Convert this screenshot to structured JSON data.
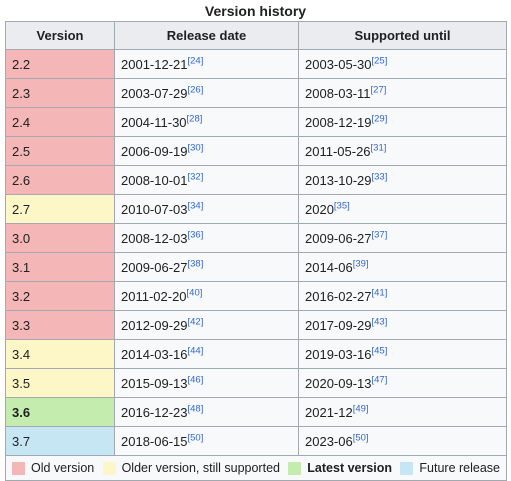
{
  "caption": "Version history",
  "headers": {
    "version": "Version",
    "release": "Release date",
    "supported": "Supported until"
  },
  "colors": {
    "old": "#f4b6b6",
    "older": "#fdf6c6",
    "latest": "#c4ecae",
    "future": "#c6e6f3"
  },
  "rows": [
    {
      "version": "2.2",
      "status": "old",
      "release": "2001-12-21",
      "release_ref": "[24]",
      "supported": "2003-05-30",
      "supported_ref": "[25]"
    },
    {
      "version": "2.3",
      "status": "old",
      "release": "2003-07-29",
      "release_ref": "[26]",
      "supported": "2008-03-11",
      "supported_ref": "[27]"
    },
    {
      "version": "2.4",
      "status": "old",
      "release": "2004-11-30",
      "release_ref": "[28]",
      "supported": "2008-12-19",
      "supported_ref": "[29]"
    },
    {
      "version": "2.5",
      "status": "old",
      "release": "2006-09-19",
      "release_ref": "[30]",
      "supported": "2011-05-26",
      "supported_ref": "[31]"
    },
    {
      "version": "2.6",
      "status": "old",
      "release": "2008-10-01",
      "release_ref": "[32]",
      "supported": "2013-10-29",
      "supported_ref": "[33]"
    },
    {
      "version": "2.7",
      "status": "older",
      "release": "2010-07-03",
      "release_ref": "[34]",
      "supported": "2020",
      "supported_ref": "[35]"
    },
    {
      "version": "3.0",
      "status": "old",
      "release": "2008-12-03",
      "release_ref": "[36]",
      "supported": "2009-06-27",
      "supported_ref": "[37]"
    },
    {
      "version": "3.1",
      "status": "old",
      "release": "2009-06-27",
      "release_ref": "[38]",
      "supported": "2014-06",
      "supported_ref": "[39]"
    },
    {
      "version": "3.2",
      "status": "old",
      "release": "2011-02-20",
      "release_ref": "[40]",
      "supported": "2016-02-27",
      "supported_ref": "[41]"
    },
    {
      "version": "3.3",
      "status": "old",
      "release": "2012-09-29",
      "release_ref": "[42]",
      "supported": "2017-09-29",
      "supported_ref": "[43]"
    },
    {
      "version": "3.4",
      "status": "older",
      "release": "2014-03-16",
      "release_ref": "[44]",
      "supported": "2019-03-16",
      "supported_ref": "[45]"
    },
    {
      "version": "3.5",
      "status": "older",
      "release": "2015-09-13",
      "release_ref": "[46]",
      "supported": "2020-09-13",
      "supported_ref": "[47]"
    },
    {
      "version": "3.6",
      "status": "latest",
      "release": "2016-12-23",
      "release_ref": "[48]",
      "supported": "2021-12",
      "supported_ref": "[49]"
    },
    {
      "version": "3.7",
      "status": "future",
      "release": "2018-06-15",
      "release_ref": "[50]",
      "supported": "2023-06",
      "supported_ref": "[50]"
    }
  ],
  "legend": {
    "old": "Old version",
    "older": "Older version, still supported",
    "latest": "Latest version",
    "future": "Future release"
  }
}
